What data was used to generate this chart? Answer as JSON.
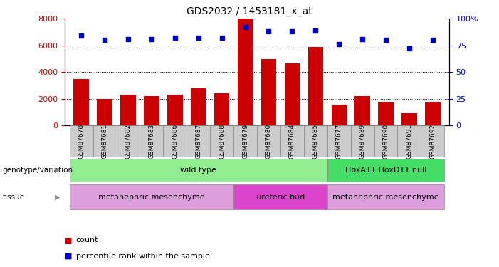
{
  "title": "GDS2032 / 1453181_x_at",
  "samples": [
    "GSM87678",
    "GSM87681",
    "GSM87682",
    "GSM87683",
    "GSM87686",
    "GSM87687",
    "GSM87688",
    "GSM87679",
    "GSM87680",
    "GSM87684",
    "GSM87685",
    "GSM87677",
    "GSM87689",
    "GSM87690",
    "GSM87691",
    "GSM87692"
  ],
  "counts": [
    3500,
    2000,
    2300,
    2200,
    2300,
    2800,
    2400,
    8000,
    5000,
    4650,
    5900,
    1550,
    2200,
    1750,
    900,
    1750
  ],
  "percentiles": [
    84,
    80,
    81,
    81,
    82,
    82,
    82,
    92,
    88,
    88,
    89,
    76,
    81,
    80,
    72,
    80
  ],
  "bar_color": "#cc0000",
  "dot_color": "#0000cc",
  "ylim_left": [
    0,
    8000
  ],
  "ylim_right": [
    0,
    100
  ],
  "yticks_left": [
    0,
    2000,
    4000,
    6000,
    8000
  ],
  "yticks_right": [
    0,
    25,
    50,
    75,
    100
  ],
  "ytick_labels_right": [
    "0",
    "25",
    "50",
    "75",
    "100%"
  ],
  "grid_values": [
    2000,
    4000,
    6000
  ],
  "genotype_groups": [
    {
      "label": "wild type",
      "start": 0,
      "end": 10,
      "color": "#90ee90"
    },
    {
      "label": "HoxA11 HoxD11 null",
      "start": 11,
      "end": 15,
      "color": "#44dd66"
    }
  ],
  "tissue_groups": [
    {
      "label": "metanephric mesenchyme",
      "start": 0,
      "end": 6,
      "color": "#dda0dd"
    },
    {
      "label": "ureteric bud",
      "start": 7,
      "end": 10,
      "color": "#dd44cc"
    },
    {
      "label": "metanephric mesenchyme",
      "start": 11,
      "end": 15,
      "color": "#dda0dd"
    }
  ],
  "genotype_label": "genotype/variation",
  "tissue_label": "tissue",
  "legend_count_label": "count",
  "legend_percentile_label": "percentile rank within the sample",
  "tick_label_color_left": "#cc0000",
  "tick_label_color_right": "#0000cc",
  "background_color": "#ffffff",
  "xticklabel_bg": "#cccccc"
}
